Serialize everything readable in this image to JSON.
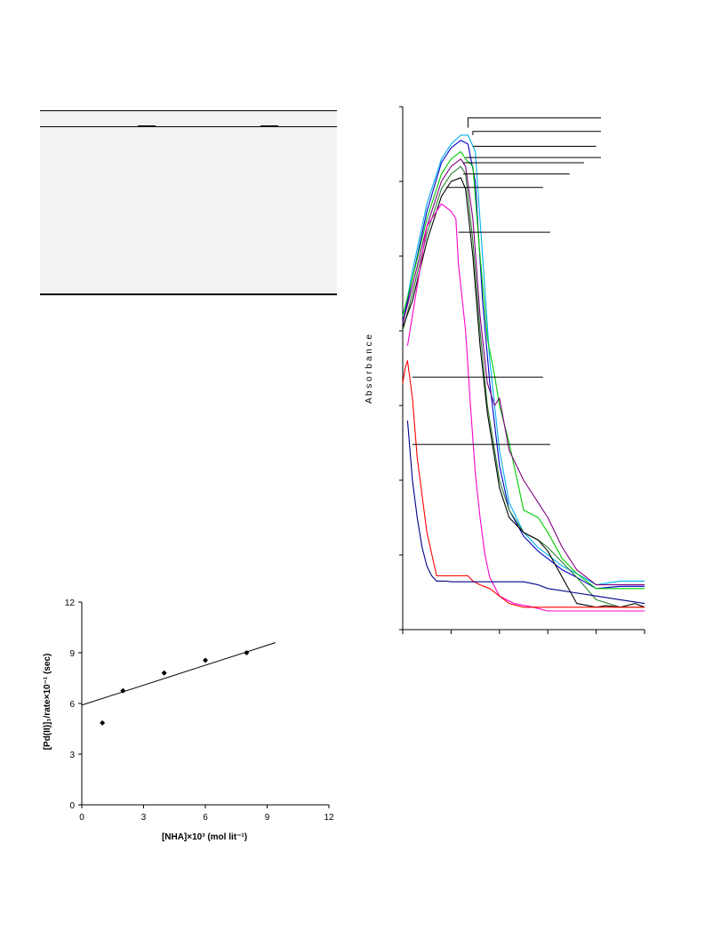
{
  "chart_data": [
    {
      "type": "scatter",
      "xlabel": "[NHA]×10³ (mol lit⁻¹)",
      "ylabel": "[Pd(II)]₁/rate×10⁻¹ (sec)",
      "xlim": [
        0,
        12
      ],
      "ylim": [
        0,
        12
      ],
      "x_ticks": [
        "0",
        "3",
        "6",
        "9",
        "12"
      ],
      "y_ticks": [
        "0",
        "3",
        "6",
        "9",
        "12"
      ],
      "grid": false,
      "points": [
        {
          "x": 1.0,
          "y": 4.85
        },
        {
          "x": 2.0,
          "y": 6.75
        },
        {
          "x": 4.0,
          "y": 7.8
        },
        {
          "x": 6.0,
          "y": 8.55
        },
        {
          "x": 8.0,
          "y": 9.0
        }
      ],
      "fit_line": {
        "x": [
          0,
          9.4
        ],
        "y": [
          5.9,
          9.6
        ]
      }
    },
    {
      "type": "line",
      "ylabel": "A b s o r b a n c e",
      "xlabel": "",
      "xlim": [
        0,
        5
      ],
      "ylim": [
        0,
        7
      ],
      "x_tick_count": 6,
      "y_tick_count": 8,
      "grid": false,
      "series": [
        {
          "color": "#00b0f0",
          "x": [
            0,
            0.2,
            0.5,
            0.8,
            1.0,
            1.2,
            1.35,
            1.5,
            1.65,
            1.8,
            2.0,
            2.2,
            2.5,
            2.8,
            3.0,
            3.3,
            3.6,
            4.0,
            4.5,
            5.0
          ],
          "y": [
            4.1,
            4.8,
            5.7,
            6.3,
            6.5,
            6.62,
            6.62,
            6.4,
            5.0,
            3.6,
            2.4,
            1.7,
            1.3,
            1.1,
            1.0,
            0.85,
            0.75,
            0.6,
            0.65,
            0.65
          ]
        },
        {
          "color": "#0000cc",
          "x": [
            0,
            0.2,
            0.5,
            0.8,
            1.0,
            1.2,
            1.35,
            1.5,
            1.65,
            1.8,
            2.0,
            2.2,
            2.5,
            2.8,
            3.0,
            3.3,
            3.6,
            4.0,
            4.5,
            5.0
          ],
          "y": [
            4.1,
            4.7,
            5.6,
            6.25,
            6.45,
            6.55,
            6.5,
            6.0,
            4.4,
            3.3,
            2.2,
            1.6,
            1.25,
            1.05,
            0.95,
            0.8,
            0.7,
            0.55,
            0.58,
            0.58
          ]
        },
        {
          "color": "#00cc00",
          "x": [
            0,
            0.2,
            0.5,
            0.8,
            1.0,
            1.2,
            1.3,
            1.45,
            1.6,
            1.75,
            1.9,
            2.0,
            2.2,
            2.5,
            2.8,
            3.0,
            3.3,
            3.6,
            4.0,
            4.5,
            5.0
          ],
          "y": [
            4.2,
            4.7,
            5.5,
            6.1,
            6.3,
            6.4,
            6.3,
            6.2,
            5.0,
            3.9,
            3.4,
            3.0,
            2.5,
            1.6,
            1.5,
            1.3,
            0.95,
            0.75,
            0.55,
            0.55,
            0.55
          ]
        },
        {
          "color": "#800080",
          "x": [
            0,
            0.2,
            0.5,
            0.8,
            1.0,
            1.2,
            1.3,
            1.45,
            1.6,
            1.75,
            1.9,
            2.0,
            2.2,
            2.5,
            2.8,
            3.0,
            3.3,
            3.6,
            4.0,
            4.5,
            5.0
          ],
          "y": [
            4.1,
            4.6,
            5.4,
            6.0,
            6.2,
            6.3,
            6.2,
            5.5,
            4.2,
            3.3,
            3.0,
            3.1,
            2.4,
            2.0,
            1.7,
            1.5,
            1.1,
            0.8,
            0.6,
            0.6,
            0.6
          ]
        },
        {
          "color": "#2e7d32",
          "x": [
            0,
            0.2,
            0.5,
            0.8,
            1.0,
            1.2,
            1.3,
            1.45,
            1.6,
            1.75,
            1.9,
            2.0,
            2.2,
            2.5,
            2.8,
            3.0,
            3.3,
            3.6,
            4.0,
            4.5,
            5.0
          ],
          "y": [
            4.0,
            4.5,
            5.3,
            5.9,
            6.1,
            6.2,
            6.1,
            5.2,
            4.0,
            3.0,
            2.4,
            2.0,
            1.6,
            1.3,
            1.2,
            1.1,
            0.9,
            0.7,
            0.4,
            0.3,
            0.3
          ]
        },
        {
          "color": "#000000",
          "x": [
            0,
            0.2,
            0.5,
            0.8,
            1.0,
            1.2,
            1.3,
            1.45,
            1.6,
            1.75,
            1.9,
            2.0,
            2.2,
            2.5,
            2.8,
            3.0,
            3.3,
            3.6,
            4.0,
            4.2,
            4.5,
            4.8,
            5.0
          ],
          "y": [
            4.05,
            4.4,
            5.2,
            5.8,
            6.0,
            6.05,
            5.9,
            5.0,
            3.8,
            2.9,
            2.3,
            1.9,
            1.5,
            1.3,
            1.2,
            1.05,
            0.7,
            0.35,
            0.3,
            0.32,
            0.3,
            0.35,
            0.3
          ]
        },
        {
          "color": "#ff00cc",
          "x": [
            0.1,
            0.3,
            0.5,
            0.8,
            1.0,
            1.1,
            1.15,
            1.3,
            1.4,
            1.5,
            1.6,
            1.7,
            1.8,
            2.0,
            2.3,
            2.7,
            3.0,
            3.5,
            4.0,
            5.0
          ],
          "y": [
            3.8,
            4.6,
            5.4,
            5.7,
            5.6,
            5.5,
            4.9,
            4.0,
            3.0,
            2.1,
            1.5,
            1.0,
            0.7,
            0.45,
            0.35,
            0.3,
            0.25,
            0.25,
            0.25,
            0.25
          ]
        },
        {
          "color": "#ff0000",
          "x": [
            0,
            0.05,
            0.1,
            0.2,
            0.3,
            0.5,
            0.7,
            1.0,
            1.2,
            1.35,
            1.45,
            1.6,
            1.8,
            2.0,
            2.2,
            2.5,
            3.0,
            3.5,
            4.0,
            5.0
          ],
          "y": [
            3.3,
            3.5,
            3.6,
            3.1,
            2.3,
            1.3,
            0.72,
            0.72,
            0.72,
            0.72,
            0.65,
            0.6,
            0.55,
            0.45,
            0.35,
            0.3,
            0.3,
            0.3,
            0.3,
            0.3
          ]
        },
        {
          "color": "#00008b",
          "x": [
            0.1,
            0.2,
            0.3,
            0.4,
            0.5,
            0.6,
            0.7,
            0.9,
            1.0,
            2.0,
            2.5,
            2.8,
            3.0,
            3.5,
            4.0,
            4.5,
            5.0
          ],
          "y": [
            2.8,
            2.0,
            1.5,
            1.1,
            0.85,
            0.72,
            0.65,
            0.65,
            0.64,
            0.64,
            0.64,
            0.6,
            0.55,
            0.5,
            0.45,
            0.4,
            0.35
          ]
        }
      ],
      "leader_lines": [
        {
          "x": [
            1.35,
            1.35,
            4.1
          ],
          "y": [
            6.72,
            6.85,
            6.85
          ]
        },
        {
          "x": [
            1.45,
            1.45,
            4.1
          ],
          "y": [
            6.62,
            6.67,
            6.67
          ]
        },
        {
          "x": [
            1.45,
            4.0
          ],
          "y": [
            6.47,
            6.47
          ]
        },
        {
          "x": [
            1.3,
            4.1
          ],
          "y": [
            6.32,
            6.32
          ]
        },
        {
          "x": [
            1.25,
            3.75
          ],
          "y": [
            6.25,
            6.25
          ]
        },
        {
          "x": [
            1.25,
            3.45
          ],
          "y": [
            6.1,
            6.1
          ]
        },
        {
          "x": [
            0.9,
            2.9
          ],
          "y": [
            5.92,
            5.92
          ]
        },
        {
          "x": [
            1.15,
            3.05
          ],
          "y": [
            5.32,
            5.32
          ]
        },
        {
          "x": [
            0.2,
            2.9
          ],
          "y": [
            3.38,
            3.38
          ]
        },
        {
          "x": [
            0.2,
            3.05
          ],
          "y": [
            2.48,
            2.48
          ]
        }
      ]
    }
  ]
}
